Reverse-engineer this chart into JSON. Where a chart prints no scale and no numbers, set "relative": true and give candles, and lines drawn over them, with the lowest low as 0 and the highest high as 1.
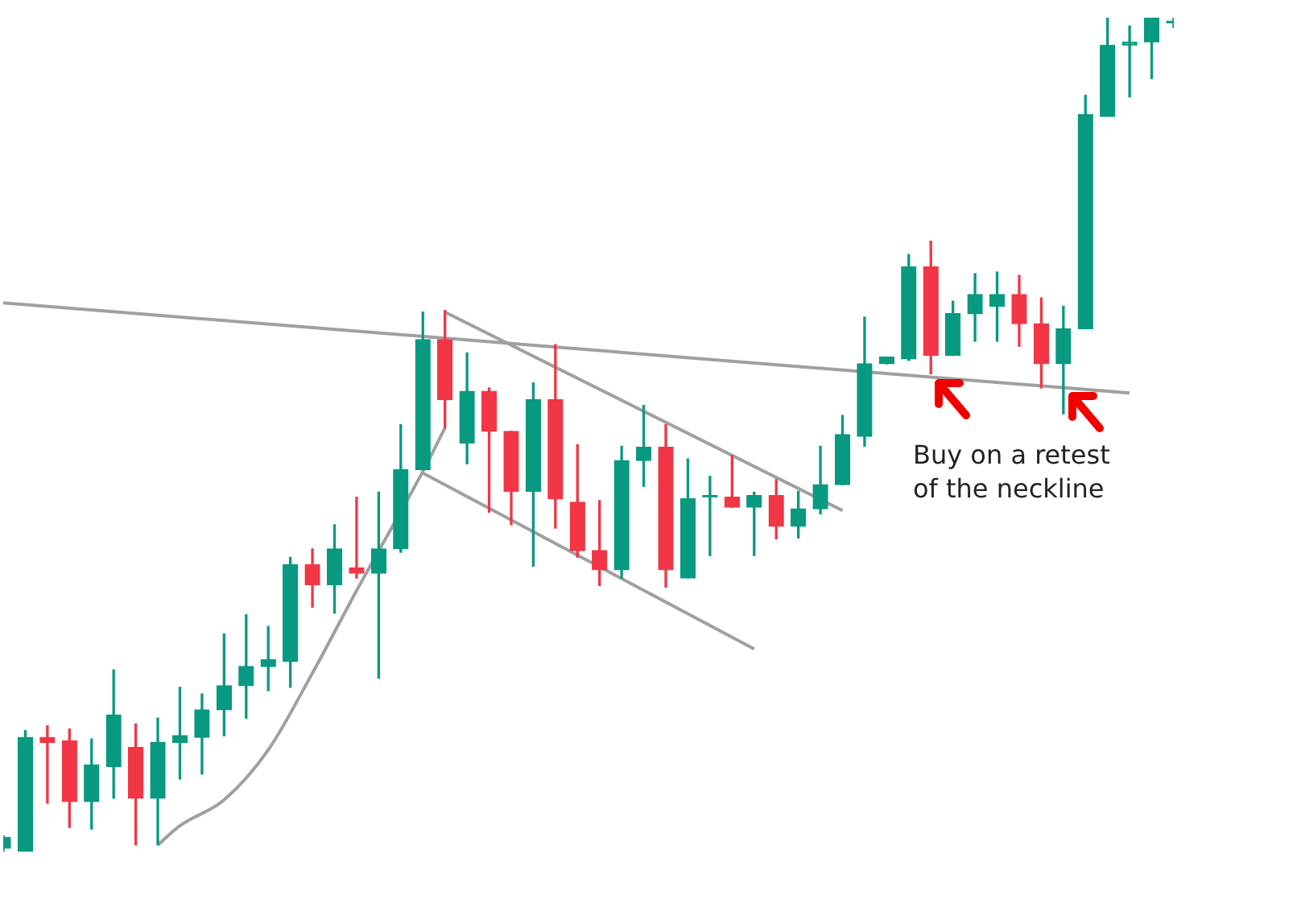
{
  "chart_data": {
    "type": "candlestick",
    "relative": true,
    "legend": false,
    "categories": [
      null,
      null,
      null,
      null,
      null,
      null,
      null,
      null,
      null,
      null,
      null,
      null,
      null,
      null,
      null,
      null,
      null,
      null,
      null,
      null,
      null,
      null,
      null,
      null,
      null,
      null,
      null,
      null,
      null,
      null,
      null,
      null,
      null,
      null,
      null,
      null,
      null,
      null,
      null,
      null,
      null,
      null,
      null,
      null,
      null,
      null,
      null,
      null,
      null,
      null,
      null,
      null,
      null,
      null
    ],
    "ohlc": [
      [
        0.004,
        0.019,
        0,
        0.017
      ],
      [
        0,
        0.145,
        0,
        0.137
      ],
      [
        0.137,
        0.151,
        0.058,
        0.131
      ],
      [
        0.133,
        0.147,
        0.029,
        0.06
      ],
      [
        0.06,
        0.135,
        0.027,
        0.104
      ],
      [
        0.102,
        0.218,
        0.064,
        0.164
      ],
      [
        0.125,
        0.153,
        0.008,
        0.064
      ],
      [
        0.064,
        0.16,
        0.008,
        0.131
      ],
      [
        0.131,
        0.197,
        0.087,
        0.139
      ],
      [
        0.137,
        0.189,
        0.093,
        0.17
      ],
      [
        0.17,
        0.261,
        0.139,
        0.199
      ],
      [
        0.199,
        0.284,
        0.16,
        0.222
      ],
      [
        0.222,
        0.27,
        0.193,
        0.23
      ],
      [
        0.228,
        0.353,
        0.197,
        0.344
      ],
      [
        0.344,
        0.363,
        0.293,
        0.32
      ],
      [
        0.32,
        0.392,
        0.286,
        0.363
      ],
      [
        0.34,
        0.425,
        0.328,
        0.334
      ],
      [
        0.334,
        0.431,
        0.208,
        0.363
      ],
      [
        0.363,
        0.512,
        0.359,
        0.458
      ],
      [
        0.458,
        0.647,
        0.458,
        0.614
      ],
      [
        0.614,
        0.649,
        0.508,
        0.542
      ],
      [
        0.49,
        0.598,
        0.465,
        0.552
      ],
      [
        0.552,
        0.556,
        0.407,
        0.504
      ],
      [
        0.504,
        0.504,
        0.392,
        0.432
      ],
      [
        0.432,
        0.562,
        0.342,
        0.542
      ],
      [
        0.542,
        0.608,
        0.388,
        0.423
      ],
      [
        0.419,
        0.488,
        0.353,
        0.361
      ],
      [
        0.361,
        0.421,
        0.319,
        0.338
      ],
      [
        0.338,
        0.486,
        0.328,
        0.469
      ],
      [
        0.469,
        0.535,
        0.438,
        0.485
      ],
      [
        0.485,
        0.512,
        0.317,
        0.338
      ],
      [
        0.328,
        0.471,
        0.328,
        0.423
      ],
      [
        0.425,
        0.45,
        0.355,
        0.425
      ],
      [
        0.425,
        0.475,
        0.413,
        0.413
      ],
      [
        0.413,
        0.431,
        0.355,
        0.427
      ],
      [
        0.427,
        0.446,
        0.375,
        0.39
      ],
      [
        0.39,
        0.432,
        0.376,
        0.411
      ],
      [
        0.411,
        0.486,
        0.405,
        0.44
      ],
      [
        0.44,
        0.523,
        0.44,
        0.5
      ],
      [
        0.498,
        0.641,
        0.486,
        0.585
      ],
      [
        0.585,
        0.593,
        0.585,
        0.593
      ],
      [
        0.591,
        0.716,
        0.589,
        0.701
      ],
      [
        0.701,
        0.732,
        0.573,
        0.595
      ],
      [
        0.595,
        0.66,
        0.595,
        0.645
      ],
      [
        0.645,
        0.693,
        0.612,
        0.668
      ],
      [
        0.654,
        0.695,
        0.612,
        0.668
      ],
      [
        0.668,
        0.691,
        0.606,
        0.633
      ],
      [
        0.633,
        0.664,
        0.556,
        0.585
      ],
      [
        0.585,
        0.654,
        0.525,
        0.627
      ],
      [
        0.627,
        0.907,
        0.627,
        0.884
      ],
      [
        0.882,
        1,
        0.882,
        0.967
      ],
      [
        0.967,
        0.99,
        0.905,
        0.971
      ],
      [
        0.971,
        1,
        0.927,
        1
      ],
      [
        0.994,
        1,
        0.988,
        0.994
      ]
    ],
    "colors": [
      "#089981",
      "#089981",
      "#f23645",
      "#f23645",
      "#089981",
      "#089981",
      "#f23645",
      "#089981",
      "#089981",
      "#089981",
      "#089981",
      "#089981",
      "#089981",
      "#089981",
      "#f23645",
      "#089981",
      "#f23645",
      "#089981",
      "#089981",
      "#089981",
      "#f23645",
      "#089981",
      "#f23645",
      "#f23645",
      "#089981",
      "#f23645",
      "#f23645",
      "#f23645",
      "#089981",
      "#089981",
      "#f23645",
      "#089981",
      "#089981",
      "#f23645",
      "#089981",
      "#f23645",
      "#089981",
      "#089981",
      "#089981",
      "#089981",
      "#089981",
      "#089981",
      "#f23645",
      "#089981",
      "#089981",
      "#089981",
      "#f23645",
      "#f23645",
      "#089981",
      "#089981",
      "#089981",
      "#089981",
      "#089981",
      "#089981"
    ],
    "series": [
      {
        "type": "line",
        "color": "#a0a0a0",
        "values": [
          0.658,
          null,
          null,
          null,
          null,
          null,
          null,
          null,
          null,
          null,
          null,
          null,
          null,
          null,
          null,
          null,
          null,
          null,
          null,
          null,
          null,
          null,
          null,
          null,
          null,
          null,
          null,
          null,
          null,
          null,
          null,
          null,
          null,
          null,
          null,
          null,
          null,
          null,
          null,
          null,
          null,
          null,
          null,
          null,
          null,
          null,
          null,
          null,
          null,
          null,
          null,
          0.55,
          null,
          null
        ]
      },
      {
        "type": "line",
        "color": "#a0a0a0",
        "values": [
          null,
          null,
          null,
          null,
          null,
          null,
          null,
          null,
          null,
          null,
          null,
          null,
          null,
          null,
          null,
          null,
          null,
          null,
          null,
          null,
          0.647,
          null,
          null,
          null,
          null,
          null,
          null,
          null,
          null,
          null,
          null,
          null,
          null,
          null,
          null,
          null,
          null,
          null,
          0.409,
          null,
          null,
          null,
          null,
          null,
          null,
          null,
          null,
          null,
          null,
          null,
          null,
          null,
          null,
          null
        ]
      },
      {
        "type": "line",
        "color": "#a0a0a0",
        "values": [
          null,
          null,
          null,
          null,
          null,
          null,
          null,
          null,
          null,
          null,
          null,
          null,
          null,
          null,
          null,
          null,
          null,
          null,
          null,
          0.454,
          null,
          null,
          null,
          null,
          null,
          null,
          null,
          null,
          null,
          null,
          null,
          null,
          null,
          null,
          0.243,
          null,
          null,
          null,
          null,
          null,
          null,
          null,
          null,
          null,
          null,
          null,
          null,
          null,
          null,
          null,
          null,
          null,
          null,
          null
        ]
      },
      {
        "type": "line",
        "color": "#a0a0a0",
        "values": [
          null,
          null,
          null,
          null,
          null,
          null,
          null,
          0.008,
          0.031,
          null,
          0.062,
          null,
          0.122,
          null,
          0.214,
          null,
          0.313,
          null,
          null,
          0.456,
          0.508,
          null,
          null,
          null,
          null,
          null,
          null,
          null,
          null,
          null,
          null,
          null,
          null,
          null,
          null,
          null,
          null,
          null,
          null,
          null,
          null,
          null,
          null,
          null,
          null,
          null,
          null,
          null,
          null,
          null,
          null,
          null,
          null,
          null
        ]
      }
    ],
    "annotations": [
      "Buy on a retest of the neckline"
    ]
  }
}
